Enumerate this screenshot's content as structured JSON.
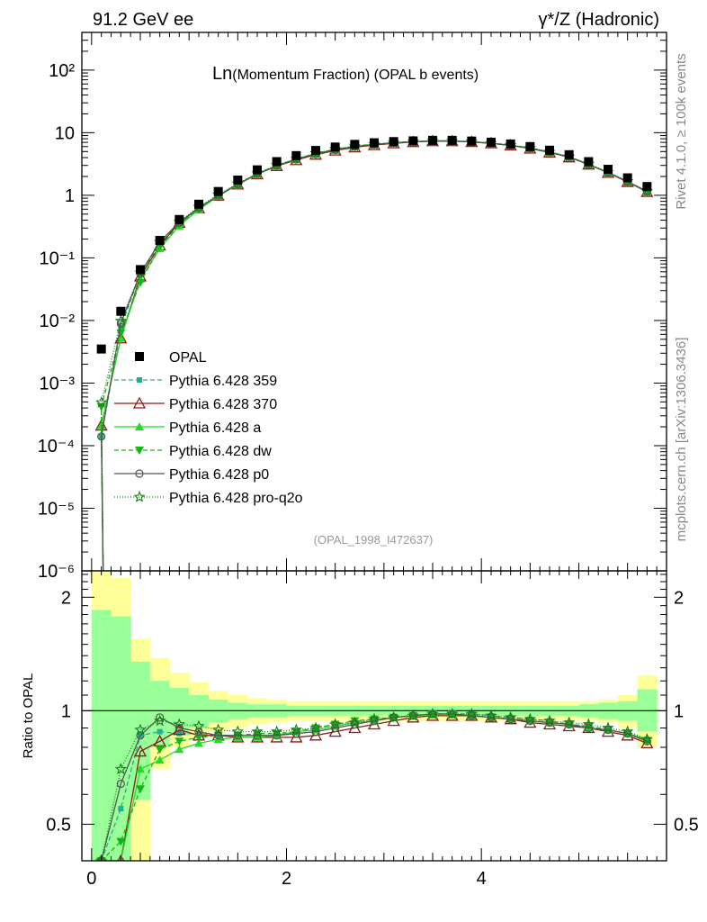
{
  "header": {
    "left": "91.2 GeV ee",
    "right": "γ*/Z (Hadronic)"
  },
  "title": {
    "main": "Ln",
    "rest": "(Momentum Fraction) (OPAL b events)"
  },
  "side_labels": {
    "rivet": "Rivet 4.1.0, ≥ 100k events",
    "mcplots": "mcplots.cern.ch [arXiv:1306.3436]"
  },
  "watermark": "(OPAL_1998_I472637)",
  "ratio_ylabel": "Ratio to OPAL",
  "colors": {
    "opal": "#000000",
    "p359": "#1fb08f",
    "p370": "#8b1a1a",
    "pa": "#22dd22",
    "pdw": "#14b814",
    "pp0": "#555555",
    "pq2o": "#1a7a1a",
    "band_outer": "#ffff99",
    "band_inner": "#99ff99"
  },
  "chart_data": {
    "type": "line",
    "x": [
      0.1,
      0.3,
      0.5,
      0.7,
      0.9,
      1.1,
      1.3,
      1.5,
      1.7,
      1.9,
      2.1,
      2.3,
      2.5,
      2.7,
      2.9,
      3.1,
      3.3,
      3.5,
      3.7,
      3.9,
      4.1,
      4.3,
      4.5,
      4.7,
      4.9,
      5.1,
      5.3,
      5.5,
      5.7
    ],
    "x_edges": [
      0.0,
      0.2,
      0.4,
      0.6,
      0.8,
      1.0,
      1.2,
      1.4,
      1.6,
      1.8,
      2.0,
      2.2,
      2.4,
      2.6,
      2.8,
      3.0,
      3.2,
      3.4,
      3.6,
      3.8,
      4.0,
      4.2,
      4.4,
      4.6,
      4.8,
      5.0,
      5.2,
      5.4,
      5.6,
      5.8
    ],
    "xlim": [
      -0.1,
      5.9
    ],
    "xticks": [
      "0",
      "2",
      "4"
    ],
    "xtick_values": [
      0,
      2,
      4
    ],
    "main": {
      "yscale": "log",
      "ylim": [
        1e-06,
        400
      ],
      "yticks": [
        {
          "v": 100,
          "label": "10²"
        },
        {
          "v": 10,
          "label": "10"
        },
        {
          "v": 1,
          "label": "1"
        },
        {
          "v": 0.1,
          "label": "10⁻¹"
        },
        {
          "v": 0.01,
          "label": "10⁻²"
        },
        {
          "v": 0.001,
          "label": "10⁻³"
        },
        {
          "v": 0.0001,
          "label": "10⁻⁴"
        },
        {
          "v": 1e-05,
          "label": "10⁻⁵"
        },
        {
          "v": 1e-06,
          "label": "10⁻⁶"
        }
      ],
      "data": [
        0.0035,
        0.014,
        0.065,
        0.19,
        0.41,
        0.72,
        1.15,
        1.75,
        2.55,
        3.45,
        4.3,
        5.2,
        5.9,
        6.5,
        6.9,
        7.2,
        7.4,
        7.55,
        7.55,
        7.35,
        7.05,
        6.6,
        6.0,
        5.25,
        4.45,
        3.45,
        2.6,
        1.9,
        1.38
      ]
    },
    "series": [
      {
        "name": "Pythia 6.428 359",
        "key": "p359",
        "marker": "square-small",
        "dash": "5,3",
        "ratio": [
          0.04,
          0.55,
          0.86,
          0.88,
          0.87,
          0.87,
          0.86,
          0.86,
          0.86,
          0.86,
          0.88,
          0.89,
          0.91,
          0.93,
          0.94,
          0.96,
          0.97,
          0.98,
          0.98,
          0.98,
          0.97,
          0.96,
          0.95,
          0.94,
          0.92,
          0.91,
          0.89,
          0.87,
          0.84
        ]
      },
      {
        "name": "Pythia 6.428 370",
        "key": "p370",
        "marker": "triangle-open",
        "dash": "",
        "ratio": [
          0.06,
          0.37,
          0.78,
          0.83,
          0.89,
          0.86,
          0.86,
          0.85,
          0.85,
          0.85,
          0.85,
          0.86,
          0.88,
          0.9,
          0.92,
          0.94,
          0.96,
          0.97,
          0.97,
          0.97,
          0.96,
          0.95,
          0.93,
          0.92,
          0.91,
          0.9,
          0.88,
          0.86,
          0.82
        ]
      },
      {
        "name": "Pythia 6.428 a",
        "key": "pa",
        "marker": "triangle-filled",
        "dash": "",
        "ratio": [
          0.06,
          0.37,
          0.7,
          0.74,
          0.79,
          0.82,
          0.84,
          0.85,
          0.85,
          0.86,
          0.88,
          0.89,
          0.91,
          0.93,
          0.94,
          0.96,
          0.97,
          0.98,
          0.98,
          0.97,
          0.96,
          0.95,
          0.94,
          0.93,
          0.92,
          0.9,
          0.89,
          0.87,
          0.84
        ]
      },
      {
        "name": "Pythia 6.428 dw",
        "key": "pdw",
        "marker": "triangle-down",
        "dash": "5,3",
        "ratio": [
          0.12,
          0.45,
          0.62,
          0.79,
          0.83,
          0.85,
          0.86,
          0.86,
          0.87,
          0.87,
          0.88,
          0.9,
          0.92,
          0.94,
          0.95,
          0.96,
          0.97,
          0.98,
          0.98,
          0.97,
          0.96,
          0.95,
          0.94,
          0.93,
          0.92,
          0.91,
          0.89,
          0.87,
          0.83
        ]
      },
      {
        "name": "Pythia 6.428 p0",
        "key": "pp0",
        "marker": "circle-open",
        "dash": "",
        "ratio": [
          0.04,
          0.64,
          0.86,
          0.96,
          0.9,
          0.88,
          0.86,
          0.86,
          0.86,
          0.86,
          0.87,
          0.88,
          0.9,
          0.92,
          0.94,
          0.96,
          0.97,
          0.98,
          0.98,
          0.97,
          0.96,
          0.95,
          0.94,
          0.93,
          0.92,
          0.9,
          0.89,
          0.87,
          0.83
        ]
      },
      {
        "name": "Pythia 6.428 pro-q2o",
        "key": "pq2o",
        "marker": "star-open",
        "dash": "1,2",
        "ratio": [
          0.14,
          0.7,
          0.89,
          0.94,
          0.92,
          0.91,
          0.89,
          0.88,
          0.88,
          0.88,
          0.89,
          0.9,
          0.92,
          0.93,
          0.95,
          0.96,
          0.97,
          0.98,
          0.98,
          0.98,
          0.97,
          0.96,
          0.95,
          0.94,
          0.93,
          0.92,
          0.9,
          0.88,
          0.84
        ]
      }
    ],
    "legend_data_name": "OPAL",
    "ratio_panel": {
      "yscale": "log",
      "ylim": [
        0.4,
        2.35
      ],
      "yticks": [
        {
          "v": 2,
          "label": "2"
        },
        {
          "v": 1,
          "label": "1"
        },
        {
          "v": 0.5,
          "label": "0.5"
        }
      ],
      "band_outer_upper": [
        2.35,
        2.25,
        1.55,
        1.38,
        1.26,
        1.19,
        1.13,
        1.1,
        1.08,
        1.07,
        1.06,
        1.06,
        1.06,
        1.06,
        1.06,
        1.06,
        1.06,
        1.06,
        1.06,
        1.06,
        1.06,
        1.06,
        1.06,
        1.06,
        1.06,
        1.06,
        1.07,
        1.1,
        1.24
      ],
      "band_outer_lower": [
        0.4,
        0.4,
        0.4,
        0.7,
        0.8,
        0.85,
        0.88,
        0.9,
        0.92,
        0.93,
        0.94,
        0.94,
        0.94,
        0.94,
        0.94,
        0.94,
        0.94,
        0.94,
        0.94,
        0.94,
        0.94,
        0.94,
        0.94,
        0.94,
        0.94,
        0.94,
        0.93,
        0.9,
        0.8
      ],
      "band_inner_upper": [
        1.85,
        1.78,
        1.35,
        1.2,
        1.15,
        1.1,
        1.07,
        1.05,
        1.04,
        1.04,
        1.03,
        1.03,
        1.03,
        1.03,
        1.03,
        1.03,
        1.03,
        1.03,
        1.03,
        1.03,
        1.03,
        1.03,
        1.03,
        1.03,
        1.03,
        1.04,
        1.05,
        1.06,
        1.14
      ],
      "band_inner_lower": [
        0.4,
        0.4,
        0.58,
        0.8,
        0.86,
        0.9,
        0.93,
        0.95,
        0.96,
        0.96,
        0.97,
        0.97,
        0.97,
        0.97,
        0.97,
        0.97,
        0.97,
        0.97,
        0.97,
        0.97,
        0.97,
        0.97,
        0.97,
        0.97,
        0.97,
        0.96,
        0.95,
        0.94,
        0.88
      ]
    }
  }
}
